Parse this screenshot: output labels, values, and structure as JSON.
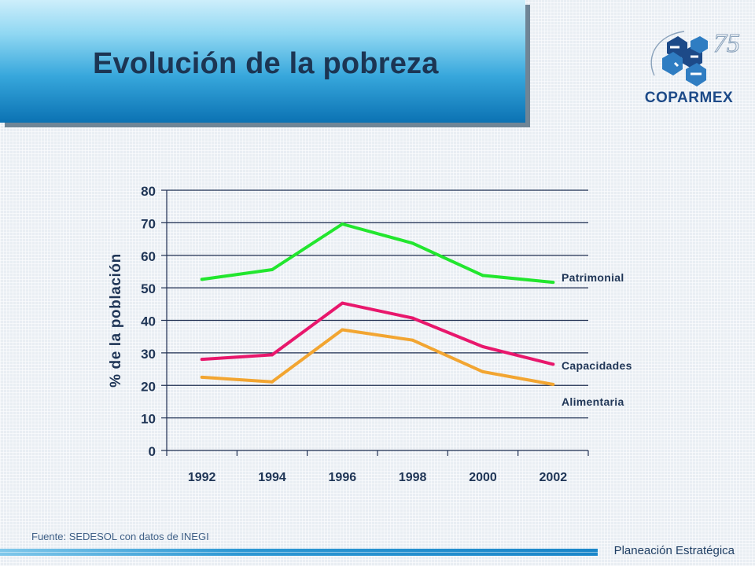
{
  "header": {
    "title": "Evolución de la pobreza"
  },
  "logo": {
    "name": "COPARMEX",
    "anniversary": "75"
  },
  "chart_data": {
    "type": "line",
    "title": "",
    "xlabel": "",
    "ylabel": "% de la población",
    "x": [
      "1992",
      "1994",
      "1996",
      "1998",
      "2000",
      "2002"
    ],
    "ylim": [
      0,
      80
    ],
    "yticks": [
      0,
      10,
      20,
      30,
      40,
      50,
      60,
      70,
      80
    ],
    "grid": true,
    "series": [
      {
        "name": "Patrimonial",
        "color": "#22e62e",
        "values": [
          52.6,
          55.6,
          69.6,
          63.7,
          53.8,
          51.7
        ]
      },
      {
        "name": "Capacidades",
        "color": "#e8176c",
        "values": [
          28.0,
          29.4,
          45.3,
          40.7,
          31.9,
          26.5
        ]
      },
      {
        "name": "Alimentaria",
        "color": "#f2a531",
        "values": [
          22.5,
          21.1,
          37.1,
          33.9,
          24.2,
          20.3
        ]
      }
    ]
  },
  "footer": {
    "source": "Fuente: SEDESOL con datos de INEGI",
    "section": "Planeación Estratégica"
  }
}
